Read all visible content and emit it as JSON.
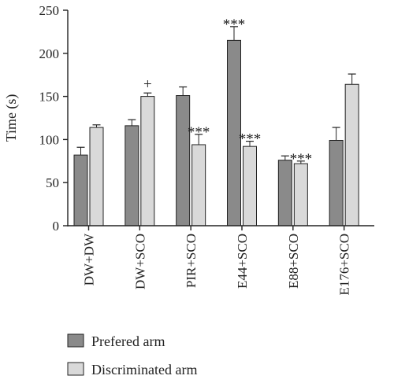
{
  "chart_data": {
    "type": "bar",
    "ylabel": "Time (s)",
    "ylim": [
      0,
      250
    ],
    "yticks": [
      0,
      50,
      100,
      150,
      200,
      250
    ],
    "categories": [
      "DW+DW",
      "DW+SCO",
      "PIR+SCO",
      "E44+SCO",
      "E88+SCO",
      "E176+SCO"
    ],
    "series": [
      {
        "name": "Prefered arm",
        "color": "#8a8a8a",
        "values": [
          82,
          116,
          151,
          215,
          76,
          99
        ],
        "errors": [
          9,
          7,
          10,
          16,
          5,
          15
        ],
        "annotations": [
          "",
          "",
          "",
          "***",
          "",
          ""
        ]
      },
      {
        "name": "Discriminated arm",
        "color": "#d9d9d9",
        "values": [
          114,
          150,
          94,
          92,
          72,
          164
        ],
        "errors": [
          3,
          4,
          12,
          6,
          3,
          12
        ],
        "annotations": [
          "",
          "+",
          "***",
          "***",
          "***",
          ""
        ]
      }
    ],
    "legend_position": "bottom-left",
    "grid": false
  }
}
